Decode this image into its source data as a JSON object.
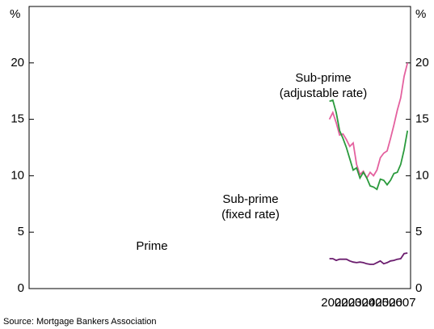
{
  "chart_data": {
    "type": "line",
    "y_unit": "%",
    "x": [
      2002.125,
      2002.375,
      2002.625,
      2002.875,
      2003.125,
      2003.375,
      2003.625,
      2003.875,
      2004.125,
      2004.375,
      2004.625,
      2004.875,
      2005.125,
      2005.375,
      2005.625,
      2005.875,
      2006.125,
      2006.375,
      2006.625,
      2006.875,
      2007.125,
      2007.375,
      2007.625,
      2007.875
    ],
    "xlim": [
      1980.0,
      2008.1
    ],
    "xticks": [
      {
        "value": 2002.5,
        "label": "2002"
      },
      {
        "value": 2003.5,
        "label": "2003"
      },
      {
        "value": 2004.5,
        "label": "2004"
      },
      {
        "value": 2005.5,
        "label": "2005"
      },
      {
        "value": 2006.5,
        "label": "2006"
      },
      {
        "value": 2007.5,
        "label": "2007"
      }
    ],
    "ylim": [
      0,
      25
    ],
    "yticks": [
      0,
      5,
      10,
      15,
      20
    ],
    "series": [
      {
        "name": "Sub-prime",
        "sublabel": "(adjustable rate)",
        "color": "#e4619f",
        "values": [
          15.0,
          15.6,
          14.7,
          13.6,
          13.7,
          13.2,
          12.6,
          12.9,
          11.0,
          10.1,
          10.4,
          9.8,
          10.3,
          10.0,
          10.5,
          11.6,
          12.0,
          12.2,
          13.3,
          14.5,
          15.8,
          16.9,
          18.8,
          20.0
        ]
      },
      {
        "name": "Sub-prime",
        "sublabel": "(fixed rate)",
        "color": "#2a9a3c",
        "values": [
          16.6,
          16.7,
          15.6,
          14.0,
          13.3,
          12.5,
          11.5,
          10.5,
          10.7,
          9.8,
          10.3,
          9.8,
          9.1,
          9.0,
          8.8,
          9.7,
          9.6,
          9.2,
          9.6,
          10.2,
          10.3,
          11.0,
          12.3,
          14.0
        ]
      },
      {
        "name": "Prime",
        "color": "#6b1d6e",
        "values": [
          2.65,
          2.65,
          2.5,
          2.6,
          2.6,
          2.6,
          2.45,
          2.35,
          2.3,
          2.35,
          2.3,
          2.2,
          2.15,
          2.15,
          2.3,
          2.45,
          2.2,
          2.3,
          2.45,
          2.5,
          2.6,
          2.65,
          3.1,
          3.15
        ]
      }
    ],
    "source": "Source: Mortgage Bankers Association"
  }
}
